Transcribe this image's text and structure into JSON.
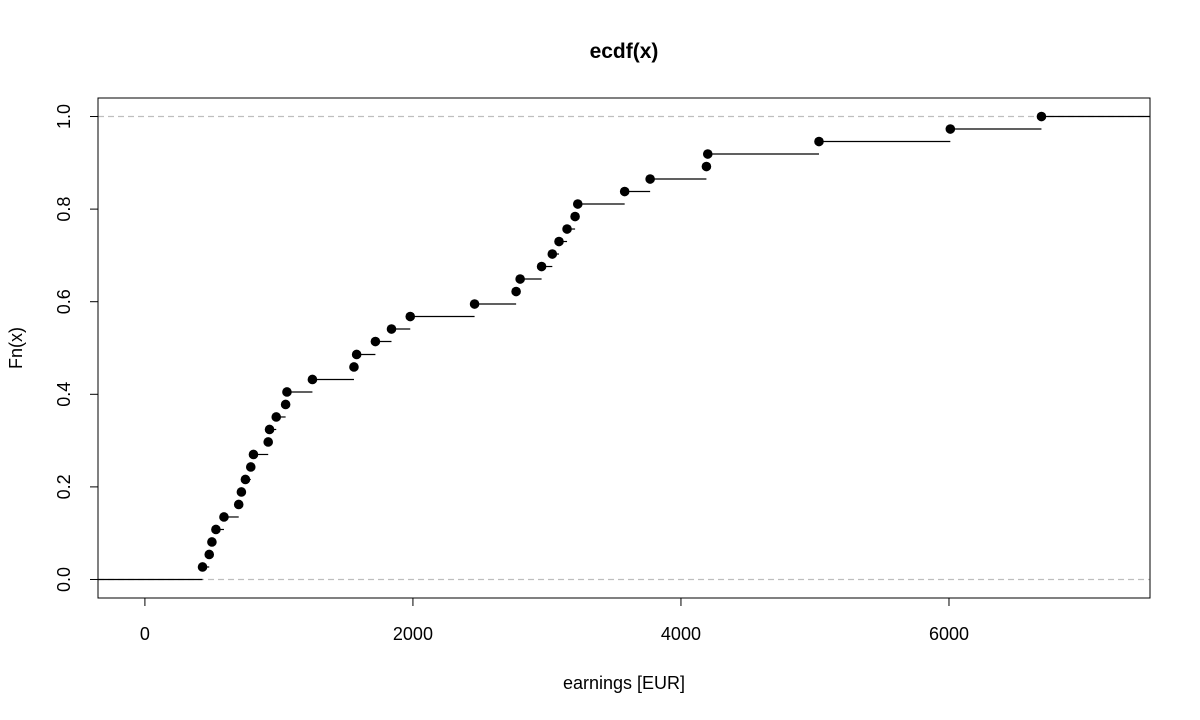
{
  "chart_data": {
    "type": "step",
    "title": "ecdf(x)",
    "xlabel": "earnings [EUR]",
    "ylabel": "Fn(x)",
    "xlim": [
      -350,
      7500
    ],
    "ylim": [
      -0.04,
      1.04
    ],
    "x_ticks": [
      0,
      2000,
      4000,
      6000
    ],
    "x_tick_labels": [
      "0",
      "2000",
      "4000",
      "6000"
    ],
    "y_ticks": [
      0.0,
      0.2,
      0.4,
      0.6,
      0.8,
      1.0
    ],
    "y_tick_labels": [
      "0.0",
      "0.2",
      "0.4",
      "0.6",
      "0.8",
      "1.0"
    ],
    "reference_lines": [
      0,
      1
    ],
    "grid": false,
    "series": [
      {
        "x": [
          430,
          480,
          500,
          530,
          590,
          700,
          720,
          750,
          790,
          810,
          920,
          930,
          980,
          1050,
          1060,
          1250,
          1560,
          1580,
          1720,
          1840,
          1980,
          2460,
          2770,
          2800,
          2960,
          3040,
          3090,
          3150,
          3210,
          3230,
          3580,
          3770,
          4190,
          4200,
          5030,
          6010,
          6690
        ],
        "y": [
          0.027,
          0.054,
          0.081,
          0.108,
          0.135,
          0.162,
          0.189,
          0.216,
          0.243,
          0.27,
          0.297,
          0.324,
          0.351,
          0.378,
          0.405,
          0.432,
          0.459,
          0.486,
          0.514,
          0.541,
          0.568,
          0.595,
          0.622,
          0.649,
          0.676,
          0.703,
          0.73,
          0.757,
          0.784,
          0.811,
          0.838,
          0.865,
          0.892,
          0.919,
          0.946,
          0.973,
          1.0
        ]
      }
    ]
  }
}
